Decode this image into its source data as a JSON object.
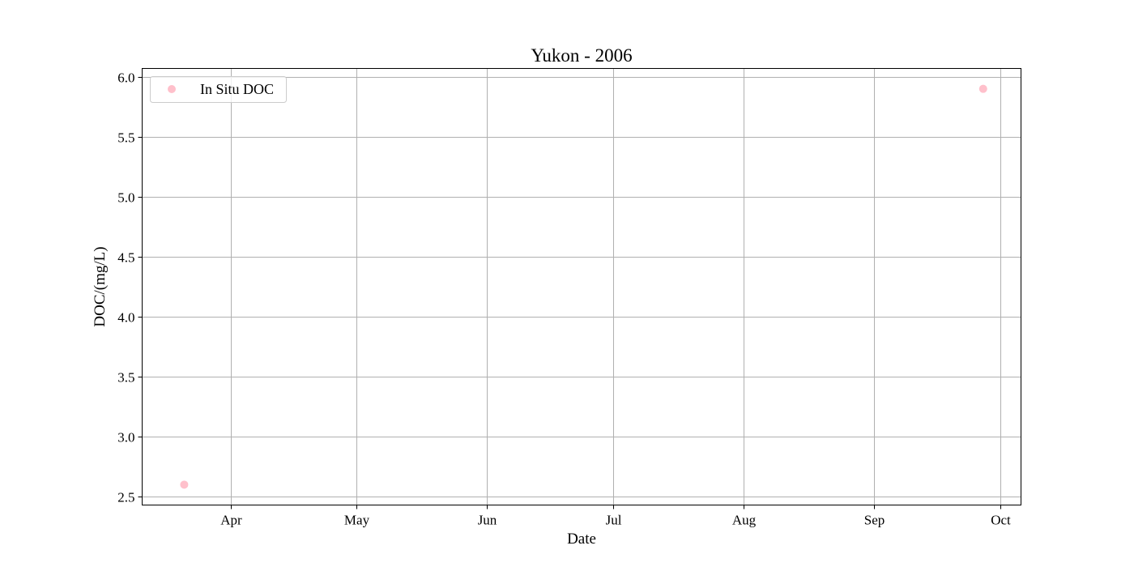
{
  "chart_data": {
    "type": "scatter",
    "title": "Yukon - 2006",
    "xlabel": "Date",
    "ylabel": "DOC/(mg/L)",
    "x_axis_type": "date",
    "xlim": [
      "2006-03-11",
      "2006-10-06"
    ],
    "ylim": [
      2.43,
      6.07
    ],
    "x_ticks": [
      {
        "date": "2006-04-01",
        "label": "Apr"
      },
      {
        "date": "2006-05-01",
        "label": "May"
      },
      {
        "date": "2006-06-01",
        "label": "Jun"
      },
      {
        "date": "2006-07-01",
        "label": "Jul"
      },
      {
        "date": "2006-08-01",
        "label": "Aug"
      },
      {
        "date": "2006-09-01",
        "label": "Sep"
      },
      {
        "date": "2006-10-01",
        "label": "Oct"
      }
    ],
    "y_ticks": [
      2.5,
      3.0,
      3.5,
      4.0,
      4.5,
      5.0,
      5.5,
      6.0
    ],
    "y_tick_labels": [
      "2.5",
      "3.0",
      "3.5",
      "4.0",
      "4.5",
      "5.0",
      "5.5",
      "6.0"
    ],
    "grid": true,
    "legend": {
      "position": "top-left",
      "entries": [
        "In Situ DOC"
      ]
    },
    "series": [
      {
        "name": "In Situ DOC",
        "color": "#ffc0cb",
        "marker": "circle",
        "points": [
          {
            "x": "2006-03-21",
            "y": 2.6
          },
          {
            "x": "2006-09-27",
            "y": 5.9
          }
        ]
      }
    ]
  }
}
